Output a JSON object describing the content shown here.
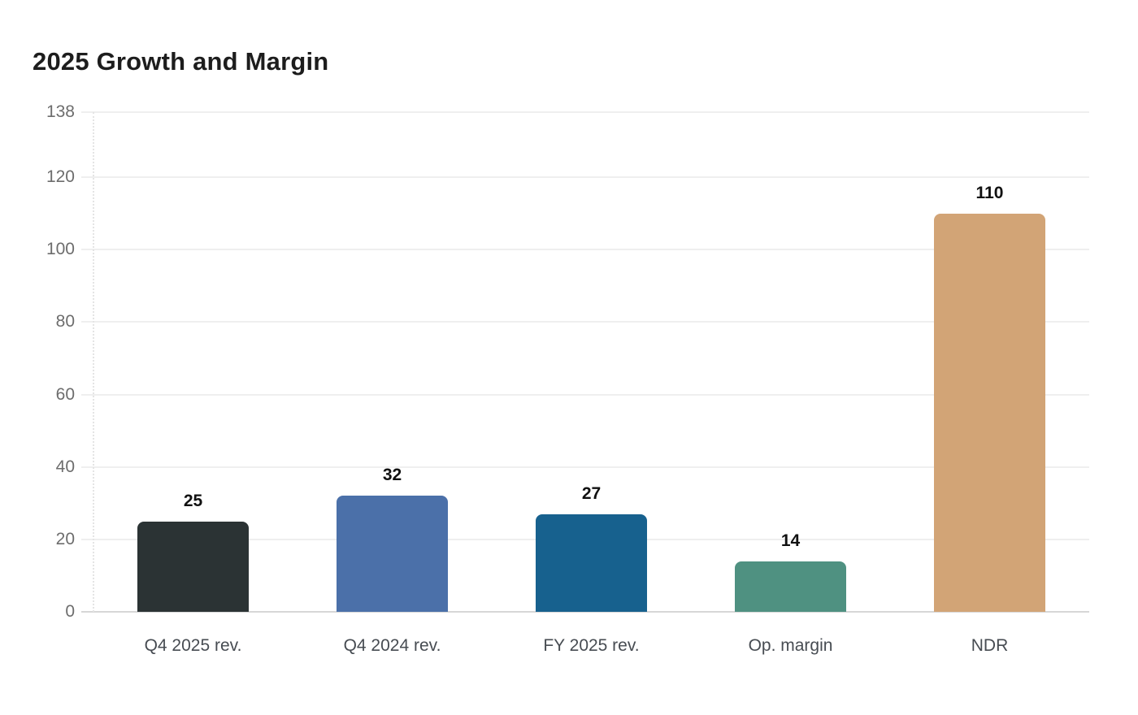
{
  "chart_data": {
    "type": "bar",
    "title": "2025 Growth and Margin",
    "categories": [
      "Q4 2025 rev.",
      "Q4 2024 rev.",
      "FY 2025 rev.",
      "Op. margin",
      "NDR"
    ],
    "values": [
      25,
      32,
      27,
      14,
      110
    ],
    "value_labels": [
      "25",
      "32",
      "27",
      "14",
      "110"
    ],
    "bar_colors": [
      "#2b3334",
      "#4b70a9",
      "#17618e",
      "#4f9181",
      "#d2a476"
    ],
    "yticks": [
      0,
      20,
      40,
      60,
      80,
      100,
      120,
      138
    ],
    "ylim": [
      0,
      138
    ],
    "xlabel": "",
    "ylabel": "",
    "grid": "horizontal",
    "legend": "none",
    "colors": {
      "title": "#1d1d1d",
      "value_label": "#111111",
      "tick_label": "#6d6d6d",
      "category_label": "#474c52",
      "gridline": "#efefef",
      "axis_line": "#d7d7d7",
      "background": "#ffffff"
    }
  }
}
